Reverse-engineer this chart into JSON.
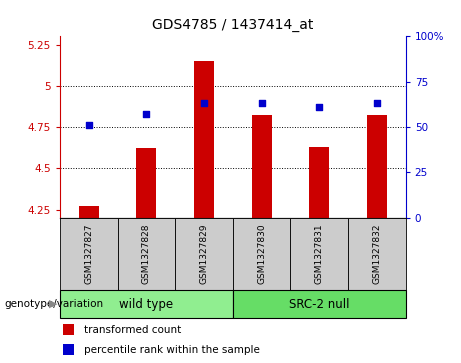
{
  "title": "GDS4785 / 1437414_at",
  "samples": [
    "GSM1327827",
    "GSM1327828",
    "GSM1327829",
    "GSM1327830",
    "GSM1327831",
    "GSM1327832"
  ],
  "transformed_counts": [
    4.27,
    4.62,
    5.15,
    4.82,
    4.63,
    4.82
  ],
  "percentile_ranks": [
    51,
    57,
    63,
    63,
    61,
    63
  ],
  "ylim_left": [
    4.2,
    5.3
  ],
  "ylim_right": [
    0,
    100
  ],
  "yticks_left": [
    4.25,
    4.5,
    4.75,
    5.0,
    5.25
  ],
  "yticks_right": [
    0,
    25,
    50,
    75,
    100
  ],
  "ytick_labels_left": [
    "4.25",
    "4.5",
    "4.75",
    "5",
    "5.25"
  ],
  "ytick_labels_right": [
    "0",
    "25",
    "50",
    "75",
    "100%"
  ],
  "hlines": [
    4.5,
    4.75,
    5.0
  ],
  "bar_color": "#cc0000",
  "dot_color": "#0000cc",
  "bar_width": 0.35,
  "bar_bottom": 4.2,
  "groups": [
    {
      "label": "wild type",
      "indices": [
        0,
        1,
        2
      ],
      "color": "#90ee90"
    },
    {
      "label": "SRC-2 null",
      "indices": [
        3,
        4,
        5
      ],
      "color": "#66dd66"
    }
  ],
  "genotype_label": "genotype/variation",
  "legend_bar_label": "transformed count",
  "legend_dot_label": "percentile rank within the sample",
  "bg_color": "#cccccc",
  "plot_bg": "#ffffff"
}
